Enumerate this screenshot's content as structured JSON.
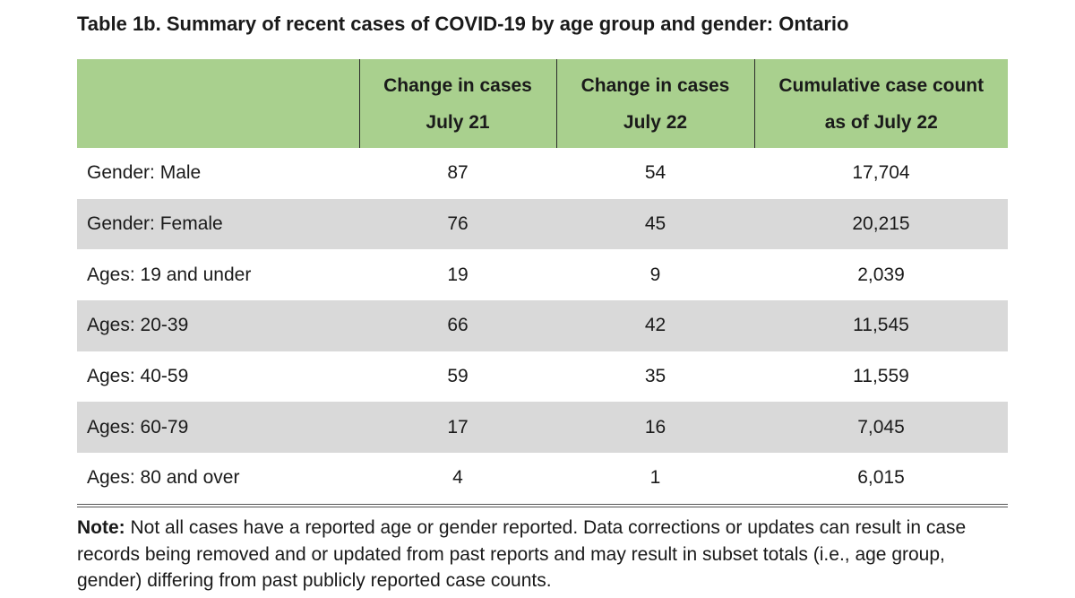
{
  "title": "Table 1b. Summary of recent cases of COVID-19 by age group and gender: Ontario",
  "table": {
    "headers": [
      {
        "line1": "",
        "line2": ""
      },
      {
        "line1": "Change in cases",
        "line2": "July 21"
      },
      {
        "line1": "Change in cases",
        "line2": "July 22"
      },
      {
        "line1": "Cumulative case count",
        "line2": "as of July 22"
      }
    ],
    "rows": [
      {
        "label": "Gender: Male",
        "jul21": "87",
        "jul22": "54",
        "cumulative": "17,704"
      },
      {
        "label": "Gender: Female",
        "jul21": "76",
        "jul22": "45",
        "cumulative": "20,215"
      },
      {
        "label": "Ages: 19 and under",
        "jul21": "19",
        "jul22": "9",
        "cumulative": "2,039"
      },
      {
        "label": "Ages: 20-39",
        "jul21": "66",
        "jul22": "42",
        "cumulative": "11,545"
      },
      {
        "label": "Ages: 40-59",
        "jul21": "59",
        "jul22": "35",
        "cumulative": "11,559"
      },
      {
        "label": "Ages: 60-79",
        "jul21": "17",
        "jul22": "16",
        "cumulative": "7,045"
      },
      {
        "label": "Ages: 80 and over",
        "jul21": "4",
        "jul22": "1",
        "cumulative": "6,015"
      }
    ]
  },
  "note": {
    "label": "Note:",
    "text": " Not all cases have a reported age or gender reported. Data corrections or updates can result in case records being removed and or updated from past reports and may result in subset totals (i.e., age group, gender) differing from past publicly reported case counts."
  },
  "colors": {
    "header_bg": "#a9d08e",
    "row_shade": "#d9d9d9"
  }
}
